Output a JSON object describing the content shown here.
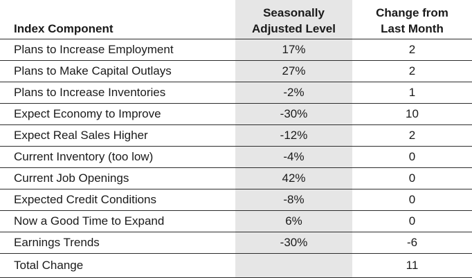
{
  "headers": {
    "component": "Index Component",
    "level_line1": "Seasonally",
    "level_line2": "Adjusted Level",
    "change_line1": "Change from",
    "change_line2": "Last Month"
  },
  "rows": [
    {
      "component": "Plans to Increase Employment",
      "level": "17%",
      "change": "2"
    },
    {
      "component": "Plans to Make Capital Outlays",
      "level": "27%",
      "change": "2"
    },
    {
      "component": "Plans to Increase Inventories",
      "level": "-2%",
      "change": "1"
    },
    {
      "component": "Expect Economy to Improve",
      "level": "-30%",
      "change": "10"
    },
    {
      "component": "Expect Real Sales Higher",
      "level": "-12%",
      "change": "2"
    },
    {
      "component": "Current Inventory (too low)",
      "level": "-4%",
      "change": "0"
    },
    {
      "component": "Current Job Openings",
      "level": "42%",
      "change": "0"
    },
    {
      "component": "Expected Credit Conditions",
      "level": "-8%",
      "change": "0"
    },
    {
      "component": "Now a Good Time to Expand",
      "level": "6%",
      "change": "0"
    },
    {
      "component": "Earnings Trends",
      "level": "-30%",
      "change": "-6"
    }
  ],
  "total": {
    "component": "Total Change",
    "level": "",
    "change": "11"
  },
  "colors": {
    "shade": "#e6e6e6",
    "rule": "#2b2b2b"
  }
}
